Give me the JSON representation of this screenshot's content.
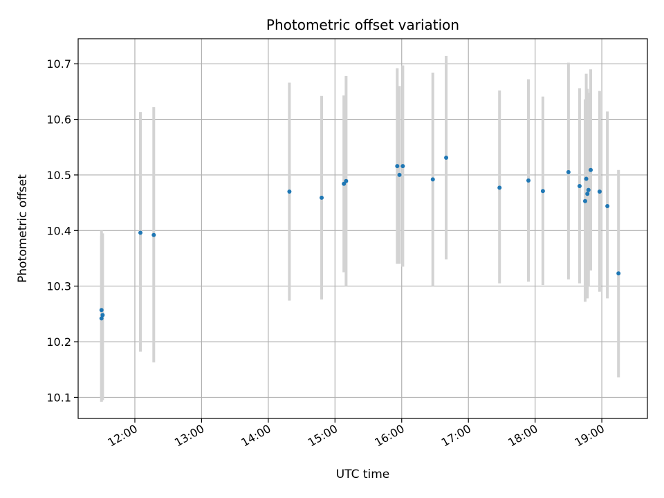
{
  "chart_data": {
    "type": "scatter",
    "title": "Photometric offset variation",
    "xlabel": "UTC time",
    "ylabel": "Photometric offset",
    "x_tick_labels": [
      "12:00",
      "13:00",
      "14:00",
      "15:00",
      "16:00",
      "17:00",
      "18:00",
      "19:00"
    ],
    "y_tick_labels": [
      "10.1",
      "10.2",
      "10.3",
      "10.4",
      "10.5",
      "10.6",
      "10.7"
    ],
    "y_ticks": [
      10.1,
      10.2,
      10.3,
      10.4,
      10.5,
      10.6,
      10.7
    ],
    "xlim": [
      "11:09",
      "19:41"
    ],
    "ylim": [
      10.062,
      10.745
    ],
    "grid": true,
    "marker_color": "#1f77b4",
    "errorbar_color": "#d3d3d3",
    "series": [
      {
        "points": [
          {
            "t": "11:30",
            "y": 10.257,
            "lo": 10.1,
            "hi": 10.39
          },
          {
            "t": "11:30",
            "y": 10.242,
            "lo": 10.092,
            "hi": 10.4
          },
          {
            "t": "11:31",
            "y": 10.248,
            "lo": 10.095,
            "hi": 10.395
          },
          {
            "t": "12:05",
            "y": 10.396,
            "lo": 10.182,
            "hi": 10.613
          },
          {
            "t": "12:17",
            "y": 10.392,
            "lo": 10.163,
            "hi": 10.622
          },
          {
            "t": "14:19",
            "y": 10.47,
            "lo": 10.274,
            "hi": 10.666
          },
          {
            "t": "14:48",
            "y": 10.459,
            "lo": 10.276,
            "hi": 10.642
          },
          {
            "t": "15:08",
            "y": 10.484,
            "lo": 10.325,
            "hi": 10.643
          },
          {
            "t": "15:10",
            "y": 10.489,
            "lo": 10.3,
            "hi": 10.678
          },
          {
            "t": "15:56",
            "y": 10.516,
            "lo": 10.34,
            "hi": 10.692
          },
          {
            "t": "15:58",
            "y": 10.5,
            "lo": 10.34,
            "hi": 10.66
          },
          {
            "t": "16:01",
            "y": 10.516,
            "lo": 10.335,
            "hi": 10.697
          },
          {
            "t": "16:28",
            "y": 10.492,
            "lo": 10.3,
            "hi": 10.684
          },
          {
            "t": "16:40",
            "y": 10.531,
            "lo": 10.348,
            "hi": 10.714
          },
          {
            "t": "17:28",
            "y": 10.477,
            "lo": 10.305,
            "hi": 10.652
          },
          {
            "t": "17:54",
            "y": 10.49,
            "lo": 10.308,
            "hi": 10.672
          },
          {
            "t": "18:07",
            "y": 10.471,
            "lo": 10.302,
            "hi": 10.641
          },
          {
            "t": "18:30",
            "y": 10.505,
            "lo": 10.312,
            "hi": 10.702
          },
          {
            "t": "18:40",
            "y": 10.48,
            "lo": 10.305,
            "hi": 10.656
          },
          {
            "t": "18:45",
            "y": 10.453,
            "lo": 10.272,
            "hi": 10.636
          },
          {
            "t": "18:46",
            "y": 10.493,
            "lo": 10.3,
            "hi": 10.682
          },
          {
            "t": "18:47",
            "y": 10.466,
            "lo": 10.278,
            "hi": 10.655
          },
          {
            "t": "18:48",
            "y": 10.473,
            "lo": 10.3,
            "hi": 10.648
          },
          {
            "t": "18:50",
            "y": 10.509,
            "lo": 10.328,
            "hi": 10.69
          },
          {
            "t": "18:58",
            "y": 10.47,
            "lo": 10.29,
            "hi": 10.651
          },
          {
            "t": "19:05",
            "y": 10.444,
            "lo": 10.278,
            "hi": 10.614
          },
          {
            "t": "19:15",
            "y": 10.323,
            "lo": 10.136,
            "hi": 10.509
          }
        ]
      }
    ]
  }
}
